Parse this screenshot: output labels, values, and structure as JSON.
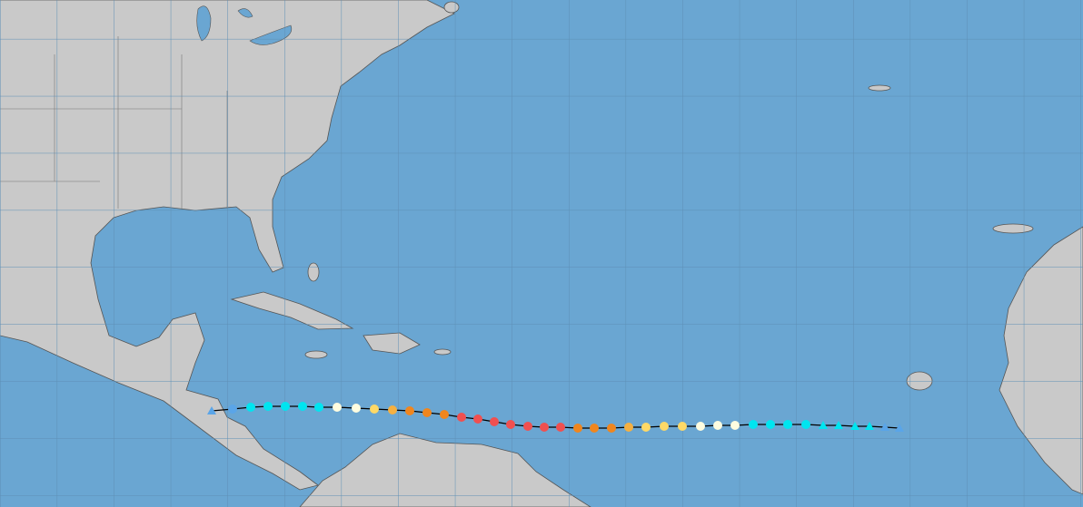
{
  "track": {
    "line_color": "#000000",
    "points": [
      {
        "shape": "triangle",
        "color": "#5aa5e8"
      },
      {
        "shape": "circle",
        "color": "#5aa5e8"
      },
      {
        "shape": "circle",
        "color": "#00e5f0"
      },
      {
        "shape": "circle",
        "color": "#00e5f0"
      },
      {
        "shape": "circle",
        "color": "#00e5f0"
      },
      {
        "shape": "circle",
        "color": "#00e5f0"
      },
      {
        "shape": "circle",
        "color": "#00e5f0"
      },
      {
        "shape": "circle",
        "color": "#fffde0"
      },
      {
        "shape": "circle",
        "color": "#fffde0"
      },
      {
        "shape": "circle",
        "color": "#ffd966"
      },
      {
        "shape": "circle",
        "color": "#f5b041"
      },
      {
        "shape": "circle",
        "color": "#f0861e"
      },
      {
        "shape": "circle",
        "color": "#f0861e"
      },
      {
        "shape": "circle",
        "color": "#f0861e"
      },
      {
        "shape": "circle",
        "color": "#f05050"
      },
      {
        "shape": "circle",
        "color": "#f05050"
      },
      {
        "shape": "circle",
        "color": "#f05050"
      },
      {
        "shape": "circle",
        "color": "#f05050"
      },
      {
        "shape": "circle",
        "color": "#f05050"
      },
      {
        "shape": "circle",
        "color": "#f05050"
      },
      {
        "shape": "circle",
        "color": "#f05050"
      },
      {
        "shape": "circle",
        "color": "#f0861e"
      },
      {
        "shape": "circle",
        "color": "#f0861e"
      },
      {
        "shape": "circle",
        "color": "#f0861e"
      },
      {
        "shape": "circle",
        "color": "#f5b041"
      },
      {
        "shape": "circle",
        "color": "#ffd966"
      },
      {
        "shape": "circle",
        "color": "#ffd966"
      },
      {
        "shape": "circle",
        "color": "#ffd966"
      },
      {
        "shape": "circle",
        "color": "#fffde0"
      },
      {
        "shape": "circle",
        "color": "#fffde0"
      },
      {
        "shape": "circle",
        "color": "#fffde0"
      },
      {
        "shape": "circle",
        "color": "#00e5f0"
      },
      {
        "shape": "circle",
        "color": "#00e5f0"
      },
      {
        "shape": "circle",
        "color": "#00e5f0"
      },
      {
        "shape": "circle",
        "color": "#00e5f0"
      },
      {
        "shape": "triangle",
        "color": "#00e5f0"
      },
      {
        "shape": "triangle",
        "color": "#00e5f0"
      },
      {
        "shape": "triangle",
        "color": "#00e5f0"
      },
      {
        "shape": "triangle",
        "color": "#00e5f0"
      },
      {
        "shape": "triangle",
        "color": "#5aa5e8"
      },
      {
        "shape": "triangle",
        "color": "#5aa5e8"
      }
    ]
  }
}
